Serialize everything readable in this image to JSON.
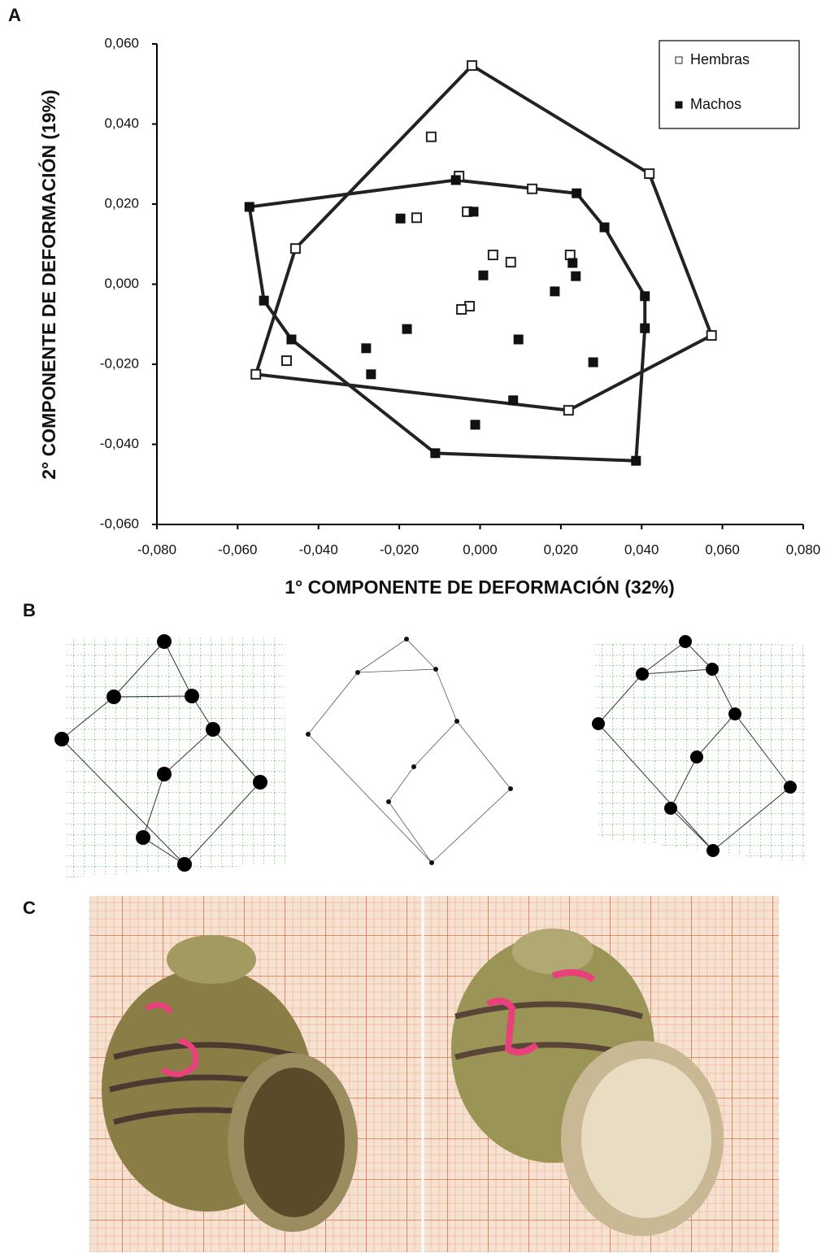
{
  "figure": {
    "panel_labels": [
      "A",
      "B",
      "C"
    ]
  },
  "chart_data": {
    "type": "scatter",
    "xlabel": "1° COMPONENTE DE DEFORMACIÓN (32%)",
    "ylabel": "2° COMPONENTE DE DEFORMACIÓN (19%)",
    "xlim": [
      -0.08,
      0.08
    ],
    "ylim": [
      -0.06,
      0.06
    ],
    "xticks": [
      {
        "value": -0.08,
        "label": "-0,080"
      },
      {
        "value": -0.06,
        "label": "-0,060"
      },
      {
        "value": -0.04,
        "label": "-0,040"
      },
      {
        "value": -0.02,
        "label": "-0,020"
      },
      {
        "value": 0,
        "label": "0,000"
      },
      {
        "value": 0.02,
        "label": "0,020"
      },
      {
        "value": 0.04,
        "label": "0,040"
      },
      {
        "value": 0.06,
        "label": "0,060"
      },
      {
        "value": 0.08,
        "label": "0,080"
      }
    ],
    "yticks": [
      {
        "value": -0.06,
        "label": "-0,060"
      },
      {
        "value": -0.04,
        "label": "-0,040"
      },
      {
        "value": -0.02,
        "label": "-0,020"
      },
      {
        "value": 0,
        "label": "0,000"
      },
      {
        "value": 0.02,
        "label": "0,020"
      },
      {
        "value": 0.04,
        "label": "0,040"
      },
      {
        "value": 0.06,
        "label": "0,060"
      }
    ],
    "convex_hull": true,
    "legend": "top-right",
    "series": [
      {
        "name": "Hembras",
        "marker": "open",
        "color": "#222222",
        "x": [
          -0.002,
          0.0419,
          0.0573,
          0.0219,
          -0.0555,
          -0.0457,
          -0.0121,
          -0.0052,
          0.0129,
          -0.0157,
          -0.0032,
          0.0032,
          0.0076,
          0.0223,
          -0.0026,
          -0.0046,
          -0.0479
        ],
        "values": [
          0.0546,
          0.0276,
          -0.0128,
          -0.0315,
          -0.0225,
          0.0089,
          0.0368,
          0.027,
          0.0238,
          0.0166,
          0.0181,
          0.0073,
          0.0055,
          0.0073,
          -0.0055,
          -0.0063,
          -0.0191
        ]
      },
      {
        "name": "Machos",
        "marker": "filled",
        "color": "#111111",
        "x": [
          -0.0571,
          -0.0535,
          -0.0467,
          -0.0282,
          -0.027,
          -0.0181,
          -0.0197,
          -0.006,
          -0.0016,
          0.0008,
          0.0095,
          0.0082,
          -0.0012,
          -0.0111,
          0.0185,
          0.0229,
          0.0237,
          0.0239,
          0.0308,
          0.0408,
          0.0408,
          0.028,
          0.0386
        ],
        "values": [
          0.0193,
          -0.0041,
          -0.0138,
          -0.016,
          -0.0225,
          -0.0112,
          0.0164,
          0.026,
          0.0181,
          0.0022,
          -0.0138,
          -0.029,
          -0.0351,
          -0.0422,
          -0.0018,
          0.0053,
          0.002,
          0.0227,
          0.0142,
          -0.003,
          -0.011,
          -0.0195,
          -0.0441
        ]
      }
    ]
  }
}
